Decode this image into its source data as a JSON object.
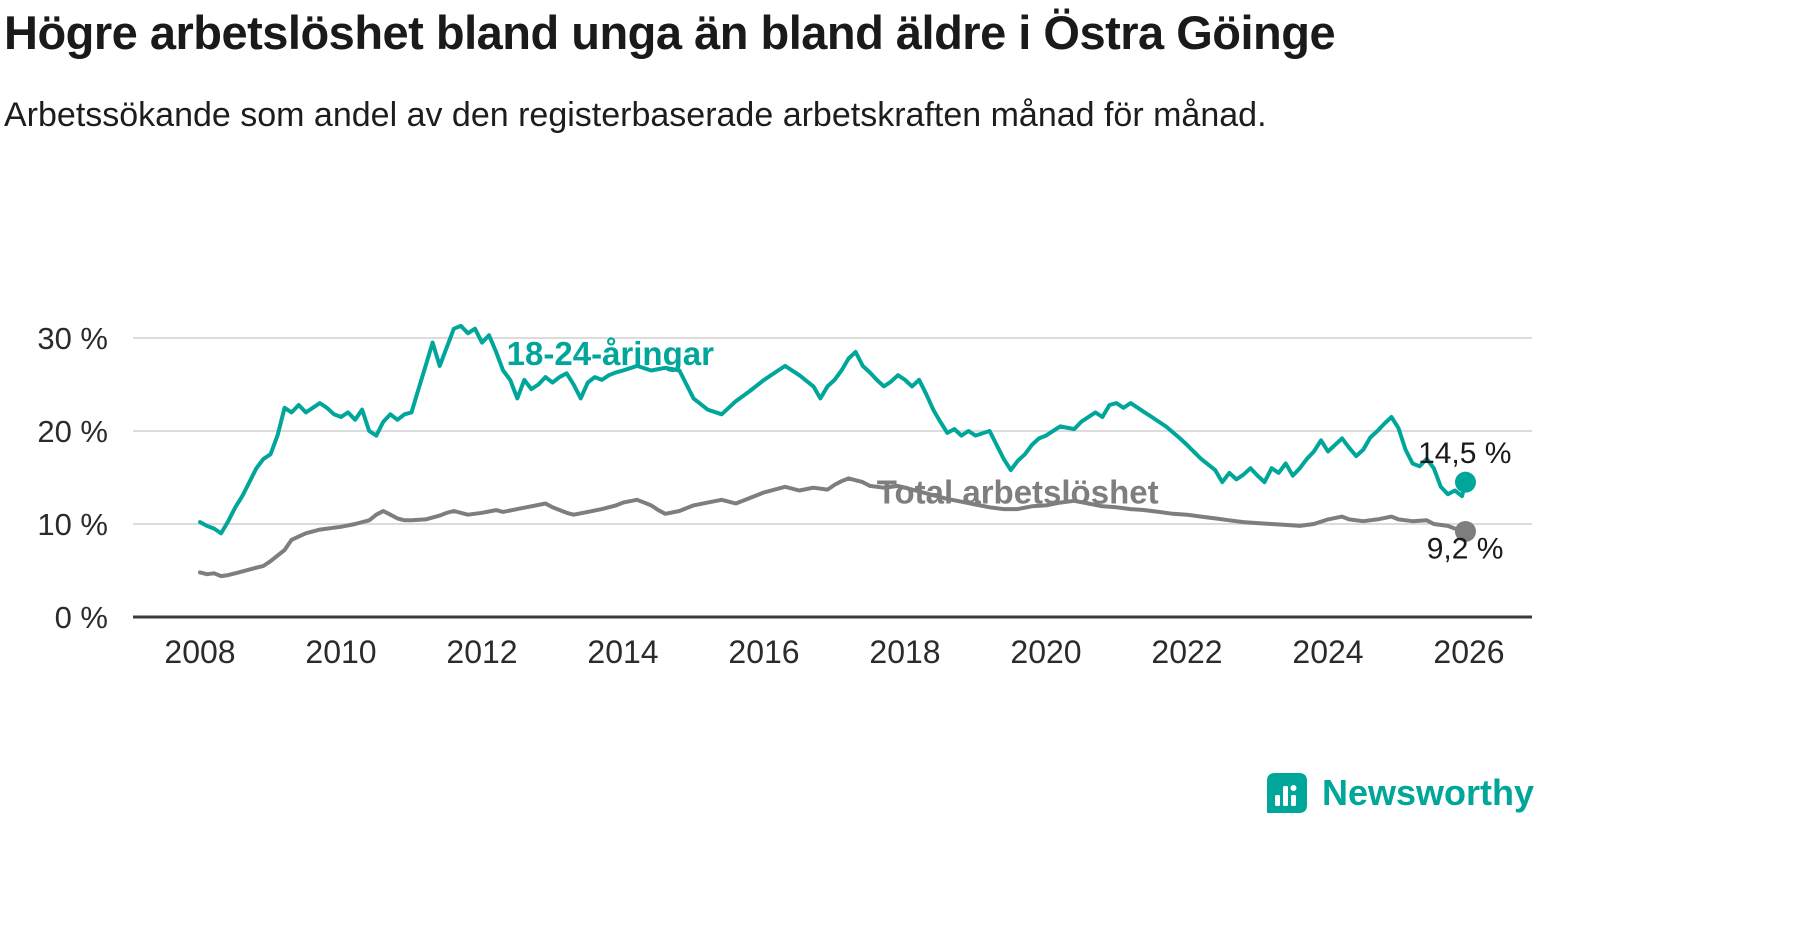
{
  "header": {
    "title": "Högre arbetslöshet bland unga än bland äldre i Östra Göinge",
    "subtitle": "Arbetssökande som andel av den registerbaserade arbetskraften månad för månad."
  },
  "chart_data": {
    "type": "line",
    "title": "Högre arbetslöshet bland unga än bland äldre i Östra Göinge",
    "subtitle": "Arbetssökande som andel av den registerbaserade arbetskraften månad för månad.",
    "unit": "%",
    "xlim": [
      2007.3,
      2026.8
    ],
    "ylim": [
      0,
      33
    ],
    "grid": "horizontal",
    "legend_position": "inline-labels",
    "x_ticks": [
      2008,
      2010,
      2012,
      2014,
      2016,
      2018,
      2020,
      2022,
      2024,
      2026
    ],
    "y_ticks": [
      {
        "value": 0,
        "label": "0 %"
      },
      {
        "value": 10,
        "label": "10 %"
      },
      {
        "value": 20,
        "label": "20 %"
      },
      {
        "value": 30,
        "label": "30 %"
      }
    ],
    "series": [
      {
        "name": "18-24-åringar",
        "color": "#00a69a",
        "end_label": "14,5 %",
        "end_value": 14.5,
        "points": [
          [
            2008.0,
            10.2
          ],
          [
            2008.1,
            9.8
          ],
          [
            2008.2,
            9.5
          ],
          [
            2008.3,
            9.0
          ],
          [
            2008.4,
            10.3
          ],
          [
            2008.5,
            11.8
          ],
          [
            2008.6,
            13.0
          ],
          [
            2008.7,
            14.5
          ],
          [
            2008.8,
            16.0
          ],
          [
            2008.9,
            17.0
          ],
          [
            2009.0,
            17.5
          ],
          [
            2009.1,
            19.5
          ],
          [
            2009.2,
            22.5
          ],
          [
            2009.3,
            22.0
          ],
          [
            2009.4,
            22.8
          ],
          [
            2009.5,
            22.0
          ],
          [
            2009.6,
            22.5
          ],
          [
            2009.7,
            23.0
          ],
          [
            2009.8,
            22.5
          ],
          [
            2009.9,
            21.8
          ],
          [
            2010.0,
            21.5
          ],
          [
            2010.1,
            22.0
          ],
          [
            2010.2,
            21.2
          ],
          [
            2010.3,
            22.3
          ],
          [
            2010.4,
            20.0
          ],
          [
            2010.5,
            19.5
          ],
          [
            2010.6,
            21.0
          ],
          [
            2010.7,
            21.8
          ],
          [
            2010.8,
            21.2
          ],
          [
            2010.9,
            21.8
          ],
          [
            2011.0,
            22.0
          ],
          [
            2011.1,
            24.5
          ],
          [
            2011.2,
            27.0
          ],
          [
            2011.3,
            29.5
          ],
          [
            2011.4,
            27.0
          ],
          [
            2011.5,
            29.0
          ],
          [
            2011.6,
            31.0
          ],
          [
            2011.7,
            31.3
          ],
          [
            2011.8,
            30.5
          ],
          [
            2011.9,
            31.0
          ],
          [
            2012.0,
            29.5
          ],
          [
            2012.1,
            30.3
          ],
          [
            2012.2,
            28.5
          ],
          [
            2012.3,
            26.5
          ],
          [
            2012.4,
            25.5
          ],
          [
            2012.5,
            23.5
          ],
          [
            2012.6,
            25.5
          ],
          [
            2012.7,
            24.5
          ],
          [
            2012.8,
            25.0
          ],
          [
            2012.9,
            25.8
          ],
          [
            2013.0,
            25.2
          ],
          [
            2013.1,
            25.8
          ],
          [
            2013.2,
            26.2
          ],
          [
            2013.3,
            25.0
          ],
          [
            2013.4,
            23.5
          ],
          [
            2013.5,
            25.2
          ],
          [
            2013.6,
            25.8
          ],
          [
            2013.7,
            25.5
          ],
          [
            2013.8,
            26.0
          ],
          [
            2013.9,
            26.3
          ],
          [
            2014.0,
            26.5
          ],
          [
            2014.2,
            27.0
          ],
          [
            2014.4,
            26.5
          ],
          [
            2014.6,
            26.8
          ],
          [
            2014.8,
            26.5
          ],
          [
            2015.0,
            23.5
          ],
          [
            2015.2,
            22.3
          ],
          [
            2015.4,
            21.8
          ],
          [
            2015.6,
            23.2
          ],
          [
            2015.8,
            24.3
          ],
          [
            2016.0,
            25.5
          ],
          [
            2016.2,
            26.5
          ],
          [
            2016.3,
            27.0
          ],
          [
            2016.5,
            26.0
          ],
          [
            2016.7,
            24.8
          ],
          [
            2016.8,
            23.5
          ],
          [
            2016.9,
            24.8
          ],
          [
            2017.0,
            25.5
          ],
          [
            2017.1,
            26.5
          ],
          [
            2017.2,
            27.8
          ],
          [
            2017.3,
            28.5
          ],
          [
            2017.4,
            27.0
          ],
          [
            2017.5,
            26.3
          ],
          [
            2017.6,
            25.5
          ],
          [
            2017.7,
            24.8
          ],
          [
            2017.8,
            25.3
          ],
          [
            2017.9,
            26.0
          ],
          [
            2018.0,
            25.5
          ],
          [
            2018.1,
            24.8
          ],
          [
            2018.2,
            25.5
          ],
          [
            2018.3,
            24.0
          ],
          [
            2018.4,
            22.3
          ],
          [
            2018.5,
            21.0
          ],
          [
            2018.6,
            19.8
          ],
          [
            2018.7,
            20.2
          ],
          [
            2018.8,
            19.5
          ],
          [
            2018.9,
            20.0
          ],
          [
            2019.0,
            19.5
          ],
          [
            2019.2,
            20.0
          ],
          [
            2019.3,
            18.5
          ],
          [
            2019.4,
            17.0
          ],
          [
            2019.5,
            15.8
          ],
          [
            2019.6,
            16.8
          ],
          [
            2019.7,
            17.5
          ],
          [
            2019.8,
            18.5
          ],
          [
            2019.9,
            19.2
          ],
          [
            2020.0,
            19.5
          ],
          [
            2020.2,
            20.5
          ],
          [
            2020.4,
            20.2
          ],
          [
            2020.5,
            21.0
          ],
          [
            2020.7,
            22.0
          ],
          [
            2020.8,
            21.5
          ],
          [
            2020.9,
            22.8
          ],
          [
            2021.0,
            23.0
          ],
          [
            2021.1,
            22.5
          ],
          [
            2021.2,
            23.0
          ],
          [
            2021.4,
            22.0
          ],
          [
            2021.5,
            21.5
          ],
          [
            2021.7,
            20.5
          ],
          [
            2021.9,
            19.2
          ],
          [
            2022.0,
            18.5
          ],
          [
            2022.2,
            17.0
          ],
          [
            2022.4,
            15.8
          ],
          [
            2022.5,
            14.5
          ],
          [
            2022.6,
            15.5
          ],
          [
            2022.7,
            14.8
          ],
          [
            2022.8,
            15.3
          ],
          [
            2022.9,
            16.0
          ],
          [
            2023.0,
            15.2
          ],
          [
            2023.1,
            14.5
          ],
          [
            2023.2,
            16.0
          ],
          [
            2023.3,
            15.5
          ],
          [
            2023.4,
            16.5
          ],
          [
            2023.5,
            15.2
          ],
          [
            2023.6,
            16.0
          ],
          [
            2023.7,
            17.0
          ],
          [
            2023.8,
            17.8
          ],
          [
            2023.9,
            19.0
          ],
          [
            2024.0,
            17.8
          ],
          [
            2024.1,
            18.5
          ],
          [
            2024.2,
            19.2
          ],
          [
            2024.3,
            18.2
          ],
          [
            2024.4,
            17.3
          ],
          [
            2024.5,
            18.0
          ],
          [
            2024.6,
            19.3
          ],
          [
            2024.7,
            20.0
          ],
          [
            2024.8,
            20.8
          ],
          [
            2024.9,
            21.5
          ],
          [
            2025.0,
            20.3
          ],
          [
            2025.1,
            18.0
          ],
          [
            2025.2,
            16.5
          ],
          [
            2025.3,
            16.2
          ],
          [
            2025.4,
            17.0
          ],
          [
            2025.5,
            16.0
          ],
          [
            2025.6,
            14.0
          ],
          [
            2025.7,
            13.2
          ],
          [
            2025.8,
            13.6
          ],
          [
            2025.9,
            13.0
          ],
          [
            2025.95,
            14.5
          ]
        ]
      },
      {
        "name": "Total arbetslöshet",
        "color": "#7e7e7e",
        "end_label": "9,2 %",
        "end_value": 9.2,
        "points": [
          [
            2008.0,
            4.8
          ],
          [
            2008.1,
            4.6
          ],
          [
            2008.2,
            4.7
          ],
          [
            2008.3,
            4.4
          ],
          [
            2008.4,
            4.5
          ],
          [
            2008.5,
            4.7
          ],
          [
            2008.6,
            4.9
          ],
          [
            2008.7,
            5.1
          ],
          [
            2008.8,
            5.3
          ],
          [
            2008.9,
            5.5
          ],
          [
            2009.0,
            6.0
          ],
          [
            2009.2,
            7.2
          ],
          [
            2009.3,
            8.3
          ],
          [
            2009.5,
            9.0
          ],
          [
            2009.7,
            9.4
          ],
          [
            2009.9,
            9.6
          ],
          [
            2010.0,
            9.7
          ],
          [
            2010.2,
            10.0
          ],
          [
            2010.4,
            10.4
          ],
          [
            2010.5,
            11.0
          ],
          [
            2010.6,
            11.4
          ],
          [
            2010.7,
            11.0
          ],
          [
            2010.8,
            10.6
          ],
          [
            2010.9,
            10.4
          ],
          [
            2011.0,
            10.4
          ],
          [
            2011.2,
            10.5
          ],
          [
            2011.4,
            10.9
          ],
          [
            2011.5,
            11.2
          ],
          [
            2011.6,
            11.4
          ],
          [
            2011.8,
            11.0
          ],
          [
            2012.0,
            11.2
          ],
          [
            2012.2,
            11.5
          ],
          [
            2012.3,
            11.3
          ],
          [
            2012.5,
            11.6
          ],
          [
            2012.7,
            11.9
          ],
          [
            2012.9,
            12.2
          ],
          [
            2013.0,
            11.8
          ],
          [
            2013.2,
            11.2
          ],
          [
            2013.3,
            11.0
          ],
          [
            2013.5,
            11.3
          ],
          [
            2013.7,
            11.6
          ],
          [
            2013.9,
            12.0
          ],
          [
            2014.0,
            12.3
          ],
          [
            2014.2,
            12.6
          ],
          [
            2014.4,
            12.0
          ],
          [
            2014.5,
            11.5
          ],
          [
            2014.6,
            11.1
          ],
          [
            2014.8,
            11.4
          ],
          [
            2015.0,
            12.0
          ],
          [
            2015.2,
            12.3
          ],
          [
            2015.4,
            12.6
          ],
          [
            2015.6,
            12.2
          ],
          [
            2015.8,
            12.8
          ],
          [
            2016.0,
            13.4
          ],
          [
            2016.2,
            13.8
          ],
          [
            2016.3,
            14.0
          ],
          [
            2016.5,
            13.6
          ],
          [
            2016.7,
            13.9
          ],
          [
            2016.9,
            13.7
          ],
          [
            2017.0,
            14.2
          ],
          [
            2017.1,
            14.6
          ],
          [
            2017.2,
            14.9
          ],
          [
            2017.4,
            14.5
          ],
          [
            2017.5,
            14.1
          ],
          [
            2017.7,
            13.9
          ],
          [
            2017.9,
            14.1
          ],
          [
            2018.0,
            13.9
          ],
          [
            2018.2,
            13.5
          ],
          [
            2018.4,
            13.1
          ],
          [
            2018.6,
            12.7
          ],
          [
            2018.8,
            12.4
          ],
          [
            2019.0,
            12.1
          ],
          [
            2019.2,
            11.8
          ],
          [
            2019.4,
            11.6
          ],
          [
            2019.6,
            11.6
          ],
          [
            2019.8,
            11.9
          ],
          [
            2020.0,
            12.0
          ],
          [
            2020.2,
            12.3
          ],
          [
            2020.4,
            12.5
          ],
          [
            2020.6,
            12.2
          ],
          [
            2020.8,
            11.9
          ],
          [
            2021.0,
            11.8
          ],
          [
            2021.2,
            11.6
          ],
          [
            2021.4,
            11.5
          ],
          [
            2021.6,
            11.3
          ],
          [
            2021.8,
            11.1
          ],
          [
            2022.0,
            11.0
          ],
          [
            2022.2,
            10.8
          ],
          [
            2022.4,
            10.6
          ],
          [
            2022.6,
            10.4
          ],
          [
            2022.8,
            10.2
          ],
          [
            2023.0,
            10.1
          ],
          [
            2023.2,
            10.0
          ],
          [
            2023.4,
            9.9
          ],
          [
            2023.6,
            9.8
          ],
          [
            2023.8,
            10.0
          ],
          [
            2024.0,
            10.5
          ],
          [
            2024.2,
            10.8
          ],
          [
            2024.3,
            10.5
          ],
          [
            2024.5,
            10.3
          ],
          [
            2024.7,
            10.5
          ],
          [
            2024.9,
            10.8
          ],
          [
            2025.0,
            10.5
          ],
          [
            2025.2,
            10.3
          ],
          [
            2025.4,
            10.4
          ],
          [
            2025.5,
            10.0
          ],
          [
            2025.7,
            9.8
          ],
          [
            2025.8,
            9.5
          ],
          [
            2025.95,
            9.2
          ]
        ]
      }
    ],
    "annotations": [
      {
        "text": "18-24-åringar",
        "x": 2012.35,
        "y": 28.3,
        "color": "#00a69a"
      },
      {
        "text": "Total arbetslöshet",
        "x": 2017.6,
        "y": 13.4,
        "color": "#7e7e7e"
      }
    ]
  },
  "footer": {
    "brand": "Newsworthy",
    "brand_color": "#00a69a"
  }
}
